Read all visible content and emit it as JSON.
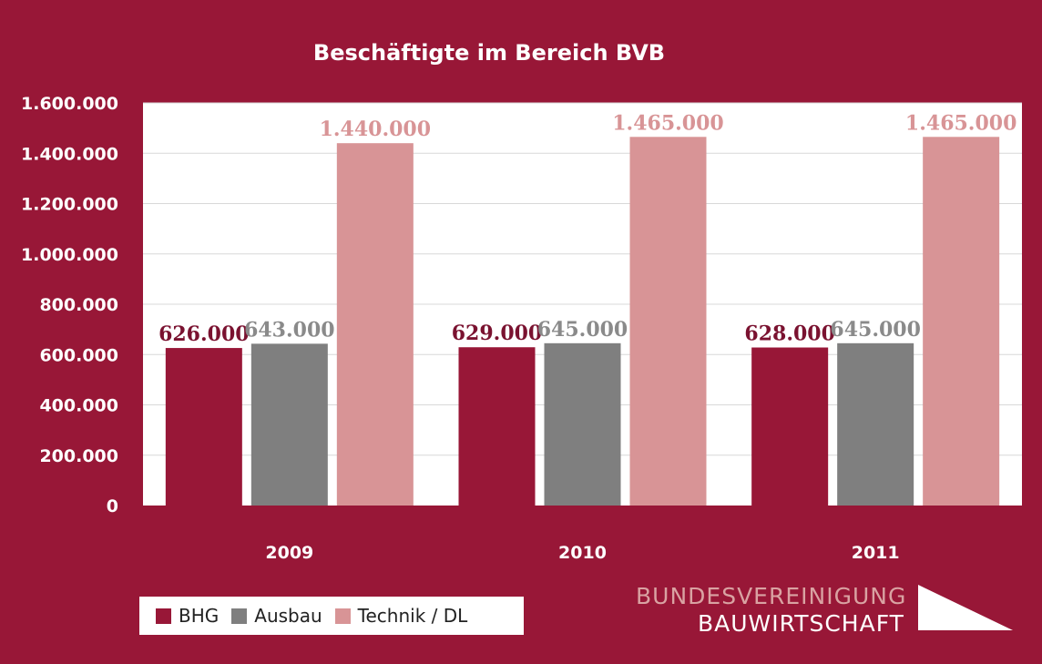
{
  "chart_data": {
    "type": "bar",
    "title": "Beschäftigte im Bereich BVB",
    "categories": [
      "2009",
      "2010",
      "2011"
    ],
    "series": [
      {
        "name": "BHG",
        "values": [
          626000,
          629000,
          628000
        ],
        "labels": [
          "626.000",
          "629.000",
          "628.000"
        ],
        "color": "#981737",
        "label_color": "#7a1230"
      },
      {
        "name": "Ausbau",
        "values": [
          643000,
          645000,
          645000
        ],
        "labels": [
          "643.000",
          "645.000",
          "645.000"
        ],
        "color": "#7f7f7f",
        "label_color": "#8a8a8a"
      },
      {
        "name": "Technik / DL",
        "values": [
          1440000,
          1465000,
          1465000
        ],
        "labels": [
          "1.440.000",
          "1.465.000",
          "1.465.000"
        ],
        "color": "#d89496",
        "label_color": "#d89496"
      }
    ],
    "yticks": [
      {
        "value": 0,
        "label": "0"
      },
      {
        "value": 200000,
        "label": "200.000"
      },
      {
        "value": 400000,
        "label": "400.000"
      },
      {
        "value": 600000,
        "label": "600.000"
      },
      {
        "value": 800000,
        "label": "800.000"
      },
      {
        "value": 1000000,
        "label": "1.000.000"
      },
      {
        "value": 1200000,
        "label": "1.200.000"
      },
      {
        "value": 1400000,
        "label": "1.400.000"
      },
      {
        "value": 1600000,
        "label": "1.600.000"
      }
    ],
    "ylim": [
      0,
      1600000
    ],
    "grid": true,
    "legend_position": "bottom-left",
    "background_color": "#981737",
    "plot_background_color": "#ffffff"
  },
  "brand": {
    "line1": "BUNDESVEREINIGUNG",
    "line2": "BAUWIRTSCHAFT"
  }
}
